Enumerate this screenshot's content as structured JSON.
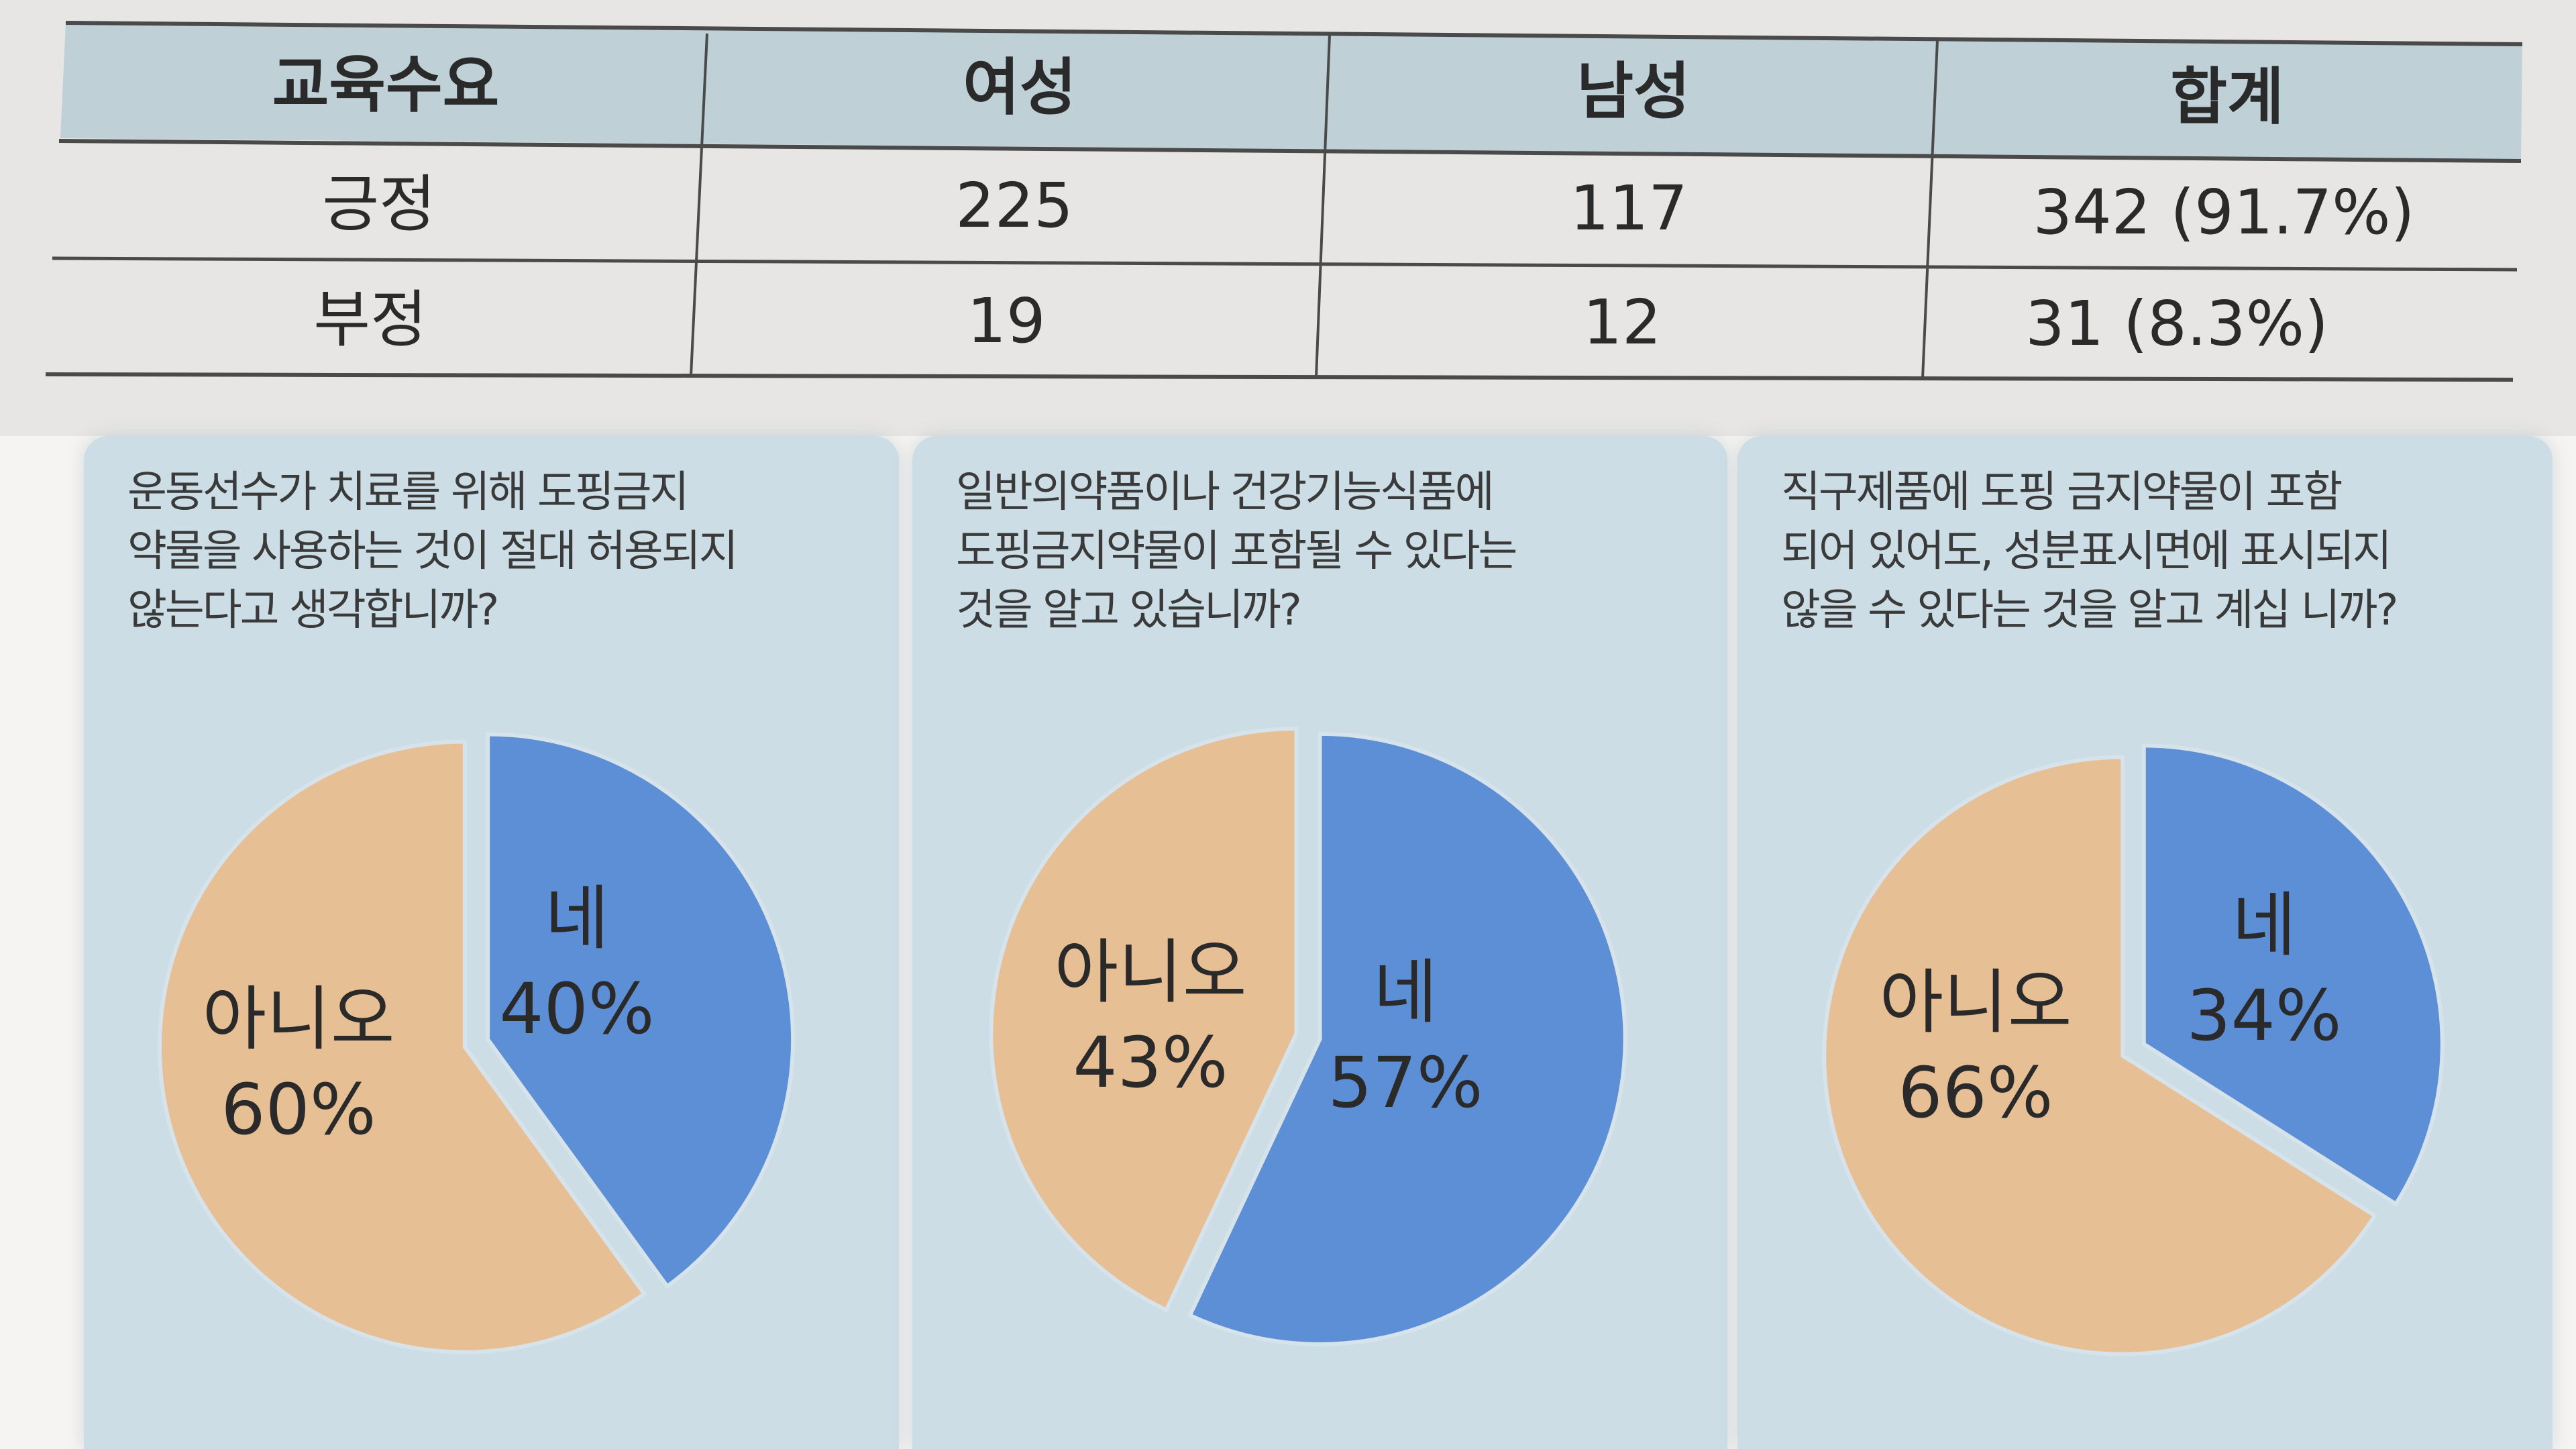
{
  "table": {
    "headers": [
      "교육수요",
      "여성",
      "남성",
      "합계"
    ],
    "rows": [
      [
        "긍정",
        "225",
        "117",
        "342 (91.7%)"
      ],
      [
        "부정",
        "19",
        "12",
        "31 (8.3%)"
      ]
    ]
  },
  "colors": {
    "header_bg": "#bfd0d6",
    "yes_slice": "#5d8fd6",
    "no_slice": "#e7bf94",
    "panel_bg": "#ccdde6"
  },
  "chart_data": [
    {
      "type": "pie",
      "question_lines": [
        "운동선수가 치료를 위해 도핑금지",
        "약물을 사용하는 것이 절대 허용되지",
        "않는다고 생각합니까?"
      ],
      "slices": [
        {
          "label": "네",
          "value": 40,
          "value_text": "40%"
        },
        {
          "label": "아니오",
          "value": 60,
          "value_text": "60%"
        }
      ]
    },
    {
      "type": "pie",
      "question_lines": [
        "일반의약품이나 건강기능식품에",
        "도핑금지약물이 포함될 수 있다는",
        "것을 알고 있습니까?"
      ],
      "slices": [
        {
          "label": "네",
          "value": 57,
          "value_text": "57%"
        },
        {
          "label": "아니오",
          "value": 43,
          "value_text": "43%"
        }
      ]
    },
    {
      "type": "pie",
      "question_lines": [
        "직구제품에 도핑 금지약물이 포함",
        "되어 있어도, 성분표시면에 표시되지",
        "않을 수 있다는 것을 알고 계십 니까?"
      ],
      "slices": [
        {
          "label": "네",
          "value": 34,
          "value_text": "34%"
        },
        {
          "label": "아니오",
          "value": 66,
          "value_text": "66%"
        }
      ]
    }
  ]
}
